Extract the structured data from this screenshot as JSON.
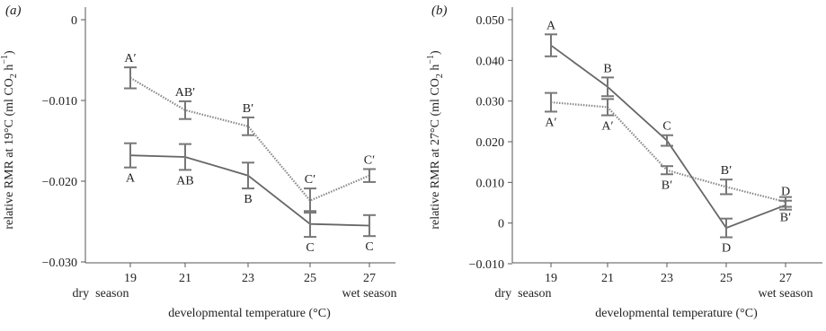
{
  "chart_data": [
    {
      "type": "line",
      "panel_label": "(a)",
      "xlabel": "developmental temperature (°C)",
      "ylabel": "relative RMR at 19°C (ml CO",
      "ylabel_sub": "2",
      "ylabel_mid": " h",
      "ylabel_sup": "−1",
      "ylabel_end": ")",
      "x": [
        19,
        21,
        23,
        25,
        27
      ],
      "x_ticks": [
        "19",
        "21",
        "23",
        "25",
        "27"
      ],
      "x_extra": [
        "dry  season",
        "wet season"
      ],
      "y_ticks": [
        "0",
        "−0.010",
        "−0.020",
        "−0.030"
      ],
      "y_tick_values": [
        0,
        -0.01,
        -0.02,
        -0.03
      ],
      "ylim": [
        -0.03,
        0.002
      ],
      "series": [
        {
          "style": "solid",
          "values": [
            -0.0168,
            -0.017,
            -0.0193,
            -0.0253,
            -0.0255
          ],
          "errors": [
            0.0015,
            0.0016,
            0.0016,
            0.0016,
            0.0013
          ],
          "labels": [
            "A",
            "AB",
            "B",
            "C",
            "C"
          ],
          "label_pos": [
            "below",
            "below",
            "below",
            "below",
            "below"
          ]
        },
        {
          "style": "dotted",
          "values": [
            -0.0072,
            -0.0112,
            -0.0132,
            -0.0224,
            -0.0193
          ],
          "errors": [
            0.0013,
            0.0011,
            0.0011,
            0.0015,
            0.0008
          ],
          "labels": [
            "A′",
            "AB′",
            "B′",
            "C′",
            "C′"
          ],
          "label_pos": [
            "above",
            "above",
            "above",
            "above",
            "above"
          ]
        }
      ]
    },
    {
      "type": "line",
      "panel_label": "(b)",
      "xlabel": "developmental temperature (°C)",
      "ylabel": "relative RMR at 27°C (ml CO",
      "ylabel_sub": "2",
      "ylabel_mid": " h",
      "ylabel_sup": "−1",
      "ylabel_end": ")",
      "x": [
        19,
        21,
        23,
        25,
        27
      ],
      "x_ticks": [
        "19",
        "21",
        "23",
        "25",
        "27"
      ],
      "x_extra": [
        "dry  season",
        "wet season"
      ],
      "y_ticks": [
        "0.050",
        "0.040",
        "0.030",
        "0.020",
        "0.010",
        "0",
        "−0.010"
      ],
      "y_tick_values": [
        0.05,
        0.04,
        0.03,
        0.02,
        0.01,
        0,
        -0.01
      ],
      "ylim": [
        -0.01,
        0.05
      ],
      "series": [
        {
          "style": "solid",
          "values": [
            0.0437,
            0.0335,
            0.0203,
            -0.0012,
            0.0044
          ],
          "errors": [
            0.0027,
            0.0023,
            0.0013,
            0.0023,
            0.0011
          ],
          "labels": [
            "A",
            "B",
            "C",
            "D",
            "D"
          ],
          "label_pos": [
            "above",
            "above",
            "above",
            "below",
            "above"
          ]
        },
        {
          "style": "dotted",
          "values": [
            0.0297,
            0.0285,
            0.013,
            0.0089,
            0.0052
          ],
          "errors": [
            0.0023,
            0.002,
            0.001,
            0.0018,
            0.0012
          ],
          "labels": [
            "A′",
            "A′",
            "B′",
            "B′",
            "B′"
          ],
          "label_pos": [
            "below",
            "below",
            "below",
            "above",
            "below"
          ]
        }
      ]
    }
  ]
}
